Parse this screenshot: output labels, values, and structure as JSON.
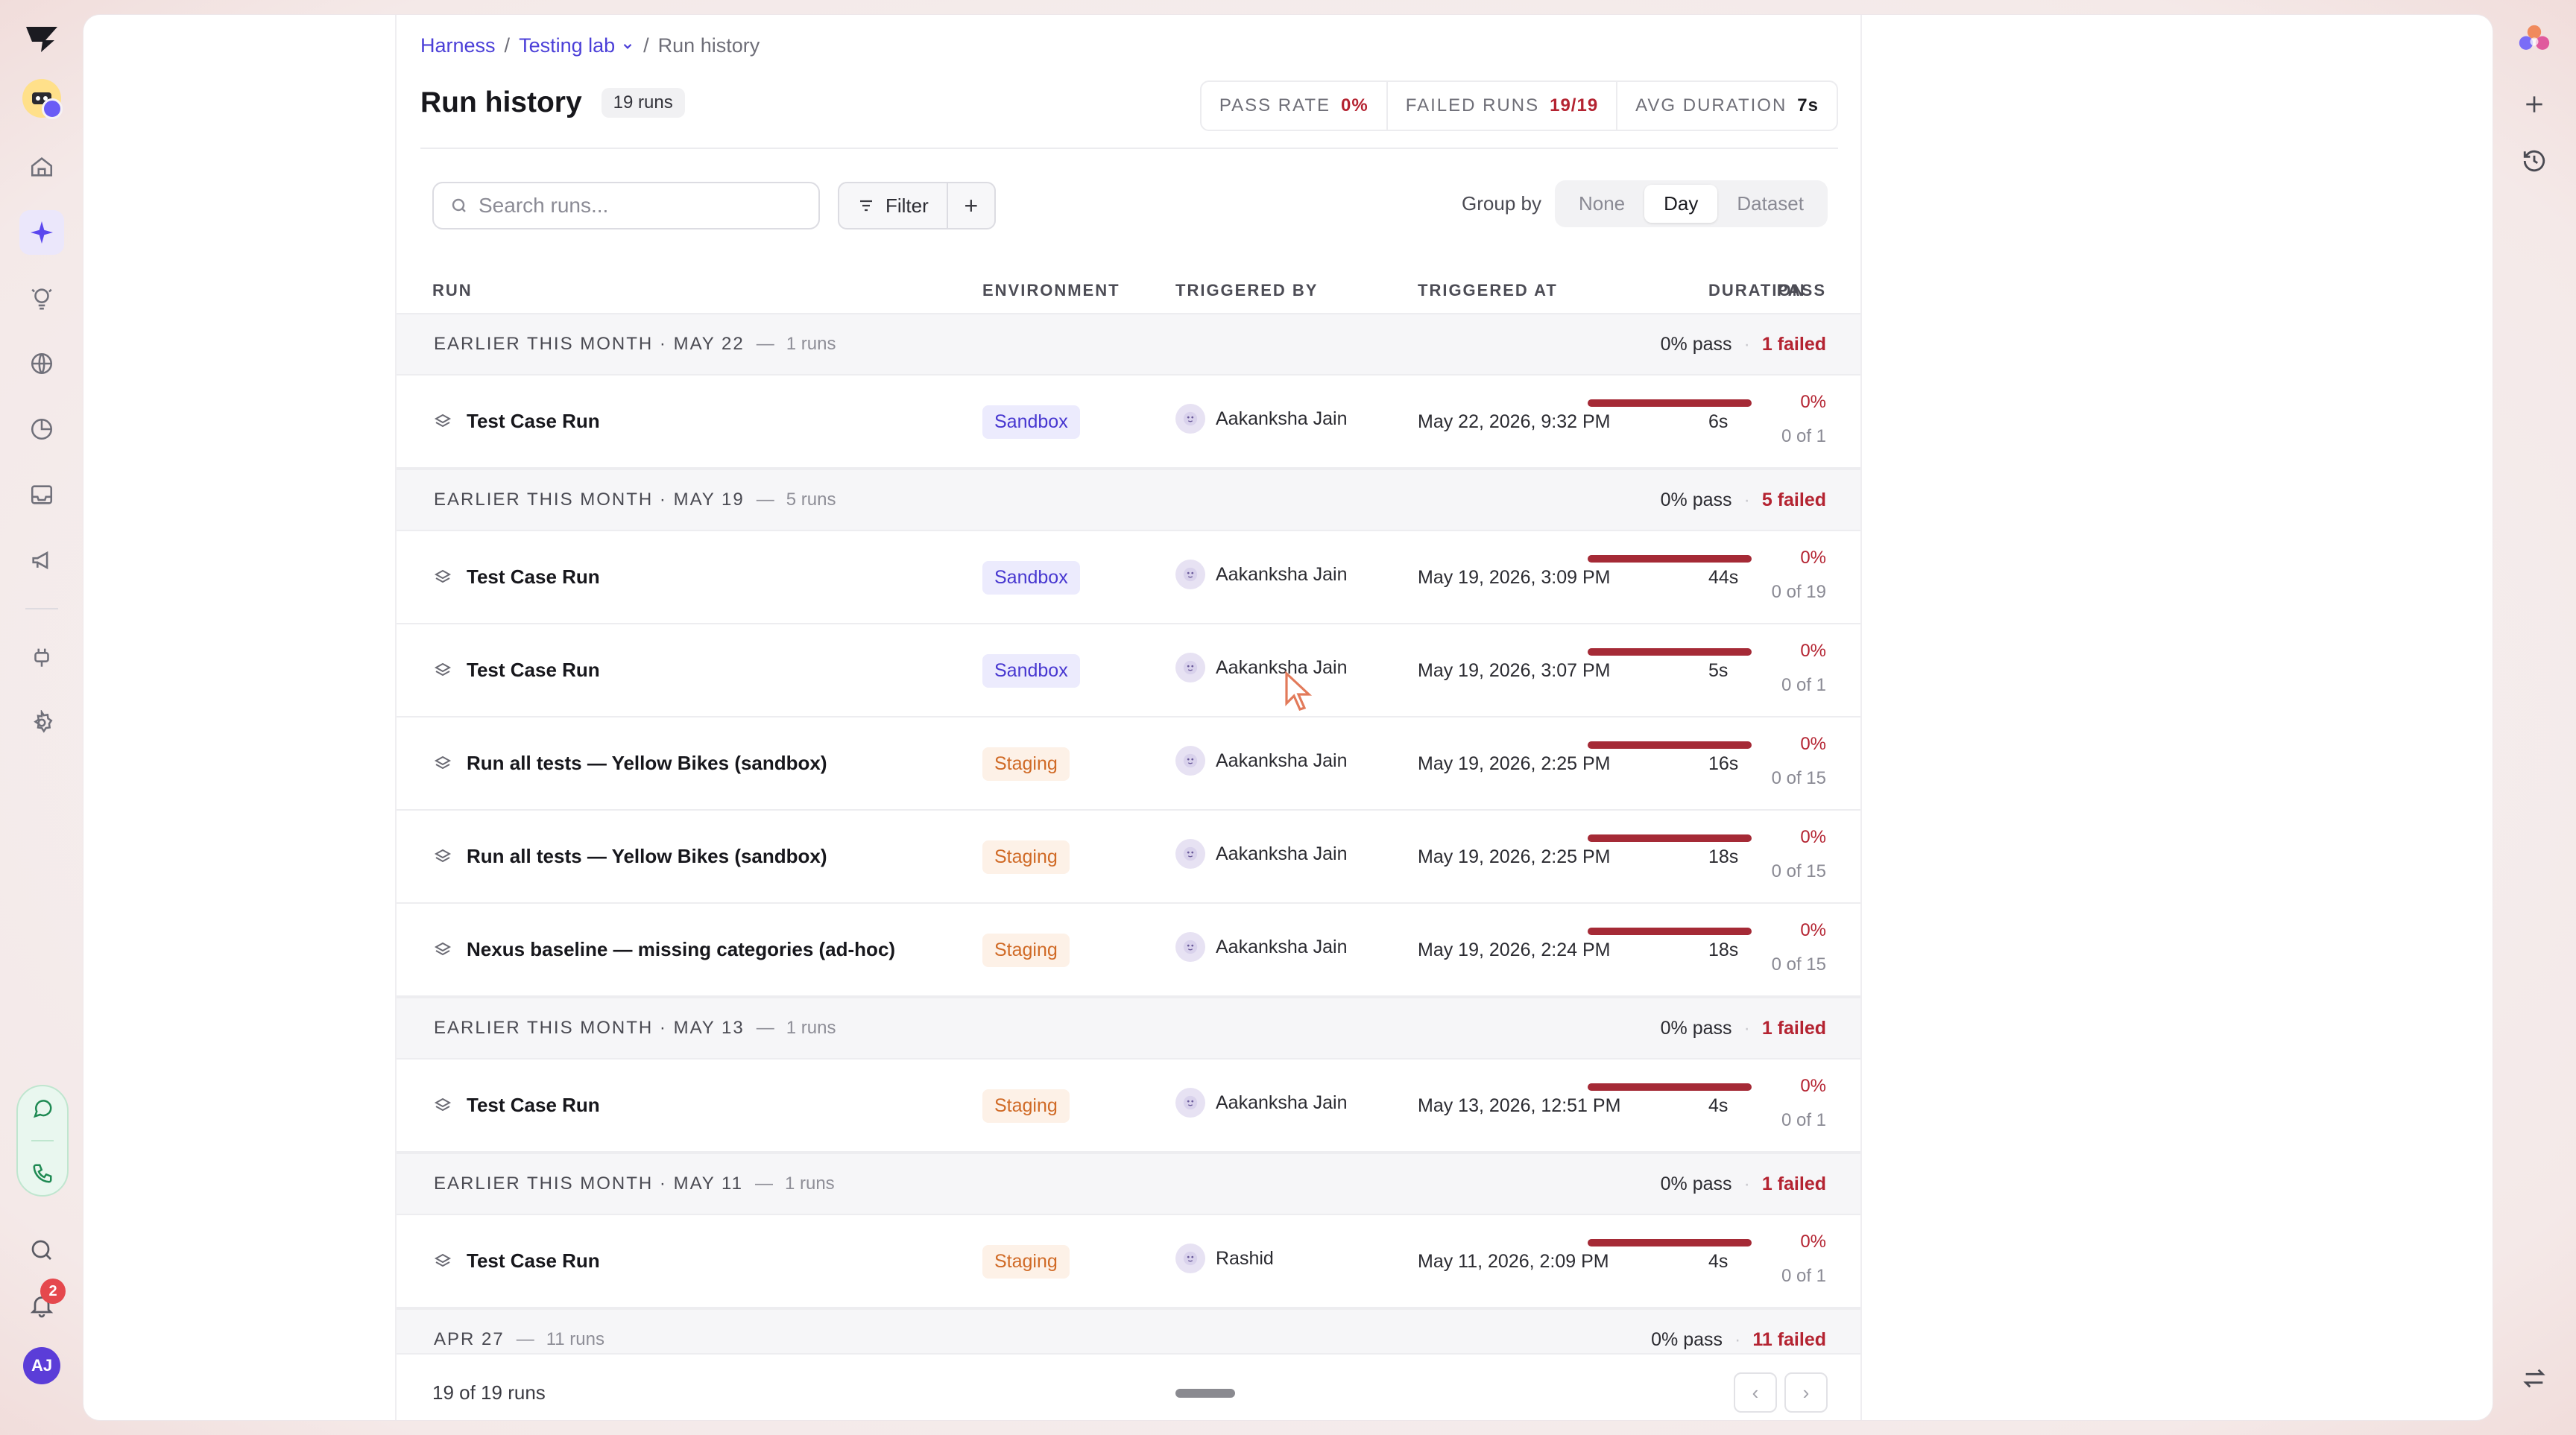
{
  "breadcrumb": {
    "root": "Harness",
    "sep": "/",
    "parent": "Testing lab",
    "current": "Run history"
  },
  "header": {
    "title": "Run history",
    "count": "19 runs"
  },
  "stats": [
    {
      "label": "PASS RATE",
      "value": "0%",
      "color": "red"
    },
    {
      "label": "FAILED RUNS",
      "value": "19/19",
      "color": "red"
    },
    {
      "label": "AVG DURATION",
      "value": "7s",
      "color": "dark"
    }
  ],
  "toolbar": {
    "search_placeholder": "Search runs...",
    "filter_label": "Filter",
    "add_label": "+",
    "group_by_label": "Group by",
    "group_options": [
      "None",
      "Day",
      "Dataset"
    ],
    "group_selected": "Day"
  },
  "table": {
    "headers": {
      "run": "RUN",
      "environment": "ENVIRONMENT",
      "triggered_by": "TRIGGERED BY",
      "triggered_at": "TRIGGERED AT",
      "duration": "DURATION",
      "pass": "PASS"
    }
  },
  "groups": [
    {
      "label": "EARLIER THIS MONTH · MAY 22",
      "dash": "—",
      "runs": "1 runs",
      "pass": "0% pass",
      "dot": "·",
      "failed": "1 failed",
      "rows": [
        {
          "name": "Test Case Run",
          "env": "Sandbox",
          "env_type": "sandbox",
          "by": "Aakanksha Jain",
          "at": "May 22, 2026, 9:32 PM",
          "dur": "6s",
          "pct": "0%",
          "of": "0 of 1",
          "pass_fraction": 0
        }
      ]
    },
    {
      "label": "EARLIER THIS MONTH · MAY 19",
      "dash": "—",
      "runs": "5 runs",
      "pass": "0% pass",
      "dot": "·",
      "failed": "5 failed",
      "rows": [
        {
          "name": "Test Case Run",
          "env": "Sandbox",
          "env_type": "sandbox",
          "by": "Aakanksha Jain",
          "at": "May 19, 2026, 3:09 PM",
          "dur": "44s",
          "pct": "0%",
          "of": "0 of 19",
          "pass_fraction": 0
        },
        {
          "name": "Test Case Run",
          "env": "Sandbox",
          "env_type": "sandbox",
          "by": "Aakanksha Jain",
          "at": "May 19, 2026, 3:07 PM",
          "dur": "5s",
          "pct": "0%",
          "of": "0 of 1",
          "pass_fraction": 0
        },
        {
          "name": "Run all tests — Yellow Bikes (sandbox)",
          "env": "Staging",
          "env_type": "staging",
          "by": "Aakanksha Jain",
          "at": "May 19, 2026, 2:25 PM",
          "dur": "16s",
          "pct": "0%",
          "of": "0 of 15",
          "pass_fraction": 0
        },
        {
          "name": "Run all tests — Yellow Bikes (sandbox)",
          "env": "Staging",
          "env_type": "staging",
          "by": "Aakanksha Jain",
          "at": "May 19, 2026, 2:25 PM",
          "dur": "18s",
          "pct": "0%",
          "of": "0 of 15",
          "pass_fraction": 0
        },
        {
          "name": "Nexus baseline — missing categories (ad-hoc)",
          "env": "Staging",
          "env_type": "staging",
          "by": "Aakanksha Jain",
          "at": "May 19, 2026, 2:24 PM",
          "dur": "18s",
          "pct": "0%",
          "of": "0 of 15",
          "pass_fraction": 0
        }
      ]
    },
    {
      "label": "EARLIER THIS MONTH · MAY 13",
      "dash": "—",
      "runs": "1 runs",
      "pass": "0% pass",
      "dot": "·",
      "failed": "1 failed",
      "rows": [
        {
          "name": "Test Case Run",
          "env": "Staging",
          "env_type": "staging",
          "by": "Aakanksha Jain",
          "at": "May 13, 2026, 12:51 PM",
          "dur": "4s",
          "pct": "0%",
          "of": "0 of 1",
          "pass_fraction": 0
        }
      ]
    },
    {
      "label": "EARLIER THIS MONTH · MAY 11",
      "dash": "—",
      "runs": "1 runs",
      "pass": "0% pass",
      "dot": "·",
      "failed": "1 failed",
      "rows": [
        {
          "name": "Test Case Run",
          "env": "Staging",
          "env_type": "staging",
          "by": "Rashid",
          "at": "May 11, 2026, 2:09 PM",
          "dur": "4s",
          "pct": "0%",
          "of": "0 of 1",
          "pass_fraction": 0
        }
      ]
    },
    {
      "label": "APR 27",
      "dash": "—",
      "runs": "11 runs",
      "pass": "0% pass",
      "dot": "·",
      "failed": "11 failed",
      "rows": []
    }
  ],
  "footer": {
    "count": "19 of 19 runs",
    "prev": "‹",
    "next": "›"
  },
  "rail": {
    "notification_count": "2",
    "user_initials": "AJ",
    "icons": [
      "home-icon",
      "sparkle-icon",
      "bulb-icon",
      "globe-icon",
      "chart-icon",
      "inbox-icon",
      "megaphone-icon",
      "plug-icon",
      "settings-icon"
    ]
  },
  "colors": {
    "accent": "#5a47ee",
    "fail": "#b42331",
    "bar": "#a52a36",
    "sandbox": "#4737d0",
    "staging": "#d06a26"
  }
}
